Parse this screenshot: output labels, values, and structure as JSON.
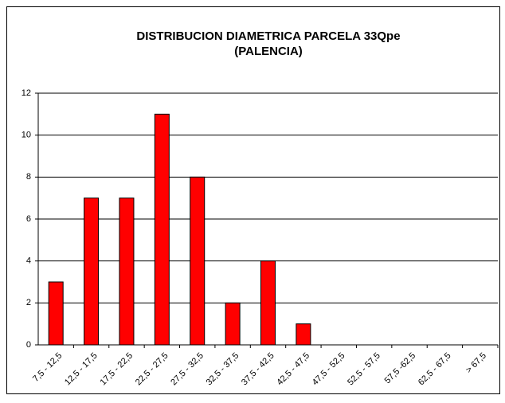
{
  "chart_data": {
    "type": "bar",
    "title": "DISTRIBUCION DIAMETRICA PARCELA 33Qpe",
    "subtitle": "(PALENCIA)",
    "categories": [
      "7,5 - 12,5",
      "12,5 - 17,5",
      "17,5 - 22,5",
      "22,5 - 27,5",
      "27,5 - 32,5",
      "32,5 - 37,5",
      "37,5 - 42,5",
      "42,5 - 47,5",
      "47,5 - 52,5",
      "52,5 - 57,5",
      "57,5 -62,5",
      "62,5 - 67,5",
      "> 67,5"
    ],
    "values": [
      3,
      7,
      7,
      11,
      8,
      2,
      4,
      1,
      0,
      0,
      0,
      0,
      0
    ],
    "color": "#ff0000",
    "ylim": [
      0,
      12
    ],
    "yticks": [
      0,
      2,
      4,
      6,
      8,
      10,
      12
    ],
    "grid": true
  }
}
